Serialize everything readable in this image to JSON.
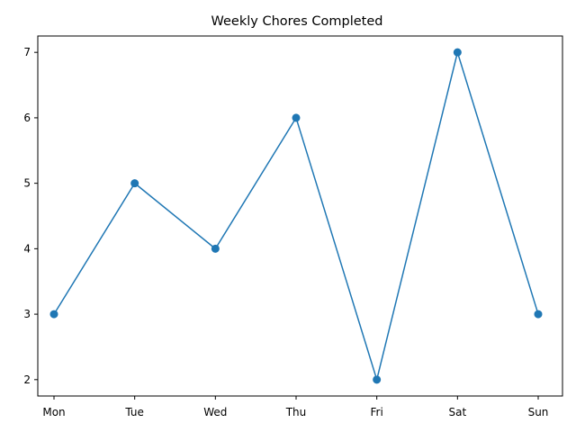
{
  "chart_data": {
    "type": "line",
    "title": "Weekly Chores Completed",
    "xlabel": "",
    "ylabel": "",
    "categories": [
      "Mon",
      "Tue",
      "Wed",
      "Thu",
      "Fri",
      "Sat",
      "Sun"
    ],
    "series": [
      {
        "values": [
          3,
          5,
          4,
          6,
          2,
          7,
          3
        ],
        "color": "#1f77b4",
        "marker": "circle"
      }
    ],
    "ylim": [
      1.75,
      7.25
    ],
    "yticks": [
      2,
      3,
      4,
      5,
      6,
      7
    ],
    "grid": false,
    "legend": "none"
  }
}
